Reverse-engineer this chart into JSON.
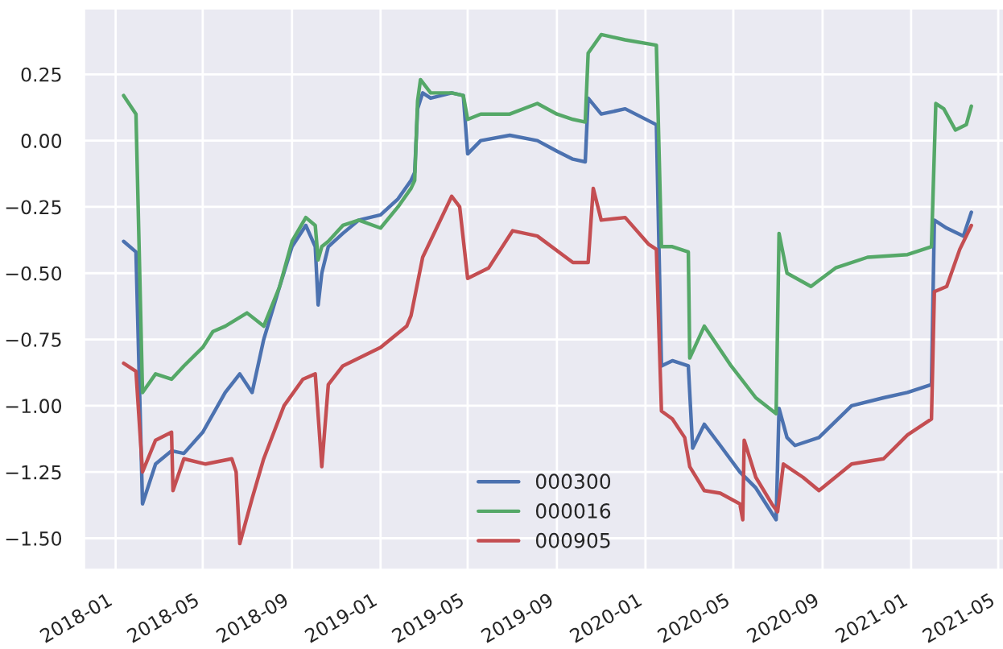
{
  "chart_data": {
    "type": "line",
    "xlim": [
      "2017-11-18",
      "2021-05-12"
    ],
    "xticks": [
      {
        "value": "2018-01-01",
        "label": "2018-01"
      },
      {
        "value": "2018-05-01",
        "label": "2018-05"
      },
      {
        "value": "2018-09-01",
        "label": "2018-09"
      },
      {
        "value": "2019-01-01",
        "label": "2019-01"
      },
      {
        "value": "2019-05-01",
        "label": "2019-05"
      },
      {
        "value": "2019-09-01",
        "label": "2019-09"
      },
      {
        "value": "2020-01-01",
        "label": "2020-01"
      },
      {
        "value": "2020-05-01",
        "label": "2020-05"
      },
      {
        "value": "2020-09-01",
        "label": "2020-09"
      },
      {
        "value": "2021-01-01",
        "label": "2021-01"
      },
      {
        "value": "2021-05-01",
        "label": "2021-05"
      }
    ],
    "ylim": [
      -1.62,
      0.5
    ],
    "yticks": [
      {
        "value": -1.5,
        "label": "−1.50"
      },
      {
        "value": -1.25,
        "label": "−1.25"
      },
      {
        "value": -1.0,
        "label": "−1.00"
      },
      {
        "value": -0.75,
        "label": "−0.75"
      },
      {
        "value": -0.5,
        "label": "−0.50"
      },
      {
        "value": -0.25,
        "label": "−0.25"
      },
      {
        "value": 0.0,
        "label": "0.00"
      },
      {
        "value": 0.25,
        "label": "0.25"
      }
    ],
    "grid": true,
    "legend": "bottom",
    "series": [
      {
        "name": "000300",
        "color": "#4c72b0",
        "x": [
          "2018-01-12",
          "2018-01-29",
          "2018-02-07",
          "2018-02-25",
          "2018-03-19",
          "2018-04-05",
          "2018-05-01",
          "2018-06-01",
          "2018-06-21",
          "2018-07-08",
          "2018-07-24",
          "2018-08-15",
          "2018-09-01",
          "2018-09-20",
          "2018-10-03",
          "2018-10-07",
          "2018-10-12",
          "2018-10-21",
          "2018-11-10",
          "2018-12-02",
          "2019-01-01",
          "2019-01-25",
          "2019-02-12",
          "2019-02-17",
          "2019-02-21",
          "2019-02-28",
          "2019-03-11",
          "2019-04-09",
          "2019-04-25",
          "2019-05-01",
          "2019-05-19",
          "2019-06-28",
          "2019-08-05",
          "2019-09-01",
          "2019-09-23",
          "2019-10-10",
          "2019-10-14",
          "2019-11-01",
          "2019-12-04",
          "2020-01-16",
          "2020-01-23",
          "2020-02-07",
          "2020-02-29",
          "2020-03-06",
          "2020-03-22",
          "2020-04-13",
          "2020-05-10",
          "2020-06-01",
          "2020-06-29",
          "2020-07-03",
          "2020-07-14",
          "2020-07-25",
          "2020-08-27",
          "2020-10-11",
          "2020-11-24",
          "2020-12-27",
          "2021-01-29",
          "2021-02-02",
          "2021-02-19",
          "2021-03-14",
          "2021-03-25"
        ],
        "values": [
          -0.38,
          -0.42,
          -1.37,
          -1.22,
          -1.17,
          -1.18,
          -1.1,
          -0.95,
          -0.88,
          -0.95,
          -0.75,
          -0.55,
          -0.4,
          -0.32,
          -0.4,
          -0.62,
          -0.5,
          -0.4,
          -0.35,
          -0.3,
          -0.28,
          -0.22,
          -0.15,
          -0.12,
          0.12,
          0.18,
          0.16,
          0.18,
          0.17,
          -0.05,
          0.0,
          0.02,
          0.0,
          -0.04,
          -0.07,
          -0.08,
          0.16,
          0.1,
          0.12,
          0.06,
          -0.85,
          -0.83,
          -0.85,
          -1.16,
          -1.07,
          -1.15,
          -1.25,
          -1.31,
          -1.43,
          -1.01,
          -1.12,
          -1.15,
          -1.12,
          -1.0,
          -0.97,
          -0.95,
          -0.92,
          -0.3,
          -0.33,
          -0.36,
          -0.27
        ]
      },
      {
        "name": "000016",
        "color": "#55a868",
        "x": [
          "2018-01-12",
          "2018-01-29",
          "2018-02-07",
          "2018-02-25",
          "2018-03-19",
          "2018-04-05",
          "2018-05-01",
          "2018-05-15",
          "2018-06-01",
          "2018-07-01",
          "2018-07-24",
          "2018-08-15",
          "2018-09-01",
          "2018-09-20",
          "2018-10-03",
          "2018-10-07",
          "2018-10-12",
          "2018-10-21",
          "2018-11-10",
          "2018-12-02",
          "2019-01-01",
          "2019-01-25",
          "2019-02-12",
          "2019-02-17",
          "2019-02-21",
          "2019-02-25",
          "2019-03-11",
          "2019-04-09",
          "2019-04-25",
          "2019-05-01",
          "2019-05-19",
          "2019-06-28",
          "2019-08-05",
          "2019-09-01",
          "2019-09-23",
          "2019-10-10",
          "2019-10-14",
          "2019-11-01",
          "2019-12-04",
          "2020-01-16",
          "2020-01-23",
          "2020-02-07",
          "2020-02-29",
          "2020-03-02",
          "2020-03-22",
          "2020-04-28",
          "2020-06-01",
          "2020-06-29",
          "2020-07-03",
          "2020-07-14",
          "2020-08-16",
          "2020-09-19",
          "2020-11-02",
          "2020-12-27",
          "2021-01-29",
          "2021-02-04",
          "2021-02-15",
          "2021-03-03",
          "2021-03-18",
          "2021-03-25"
        ],
        "values": [
          0.17,
          0.1,
          -0.95,
          -0.88,
          -0.9,
          -0.85,
          -0.78,
          -0.72,
          -0.7,
          -0.65,
          -0.7,
          -0.55,
          -0.38,
          -0.29,
          -0.32,
          -0.45,
          -0.4,
          -0.38,
          -0.32,
          -0.3,
          -0.33,
          -0.25,
          -0.18,
          -0.15,
          0.15,
          0.23,
          0.18,
          0.18,
          0.17,
          0.08,
          0.1,
          0.1,
          0.14,
          0.1,
          0.08,
          0.07,
          0.33,
          0.4,
          0.38,
          0.36,
          -0.4,
          -0.4,
          -0.42,
          -0.82,
          -0.7,
          -0.85,
          -0.97,
          -1.03,
          -0.35,
          -0.5,
          -0.55,
          -0.48,
          -0.44,
          -0.43,
          -0.4,
          0.14,
          0.12,
          0.04,
          0.06,
          0.13
        ]
      },
      {
        "name": "000905",
        "color": "#c44e52",
        "x": [
          "2018-01-12",
          "2018-01-29",
          "2018-02-07",
          "2018-02-25",
          "2018-03-19",
          "2018-03-21",
          "2018-04-05",
          "2018-05-05",
          "2018-06-10",
          "2018-06-16",
          "2018-06-21",
          "2018-07-08",
          "2018-07-24",
          "2018-08-21",
          "2018-09-16",
          "2018-10-03",
          "2018-10-12",
          "2018-10-21",
          "2018-11-10",
          "2019-01-01",
          "2019-02-06",
          "2019-02-12",
          "2019-02-28",
          "2019-04-09",
          "2019-04-20",
          "2019-05-01",
          "2019-05-30",
          "2019-07-02",
          "2019-08-05",
          "2019-09-23",
          "2019-10-14",
          "2019-10-21",
          "2019-11-01",
          "2019-12-04",
          "2020-01-05",
          "2020-01-16",
          "2020-01-23",
          "2020-02-07",
          "2020-02-24",
          "2020-03-02",
          "2020-03-22",
          "2020-04-13",
          "2020-05-10",
          "2020-05-14",
          "2020-05-16",
          "2020-06-01",
          "2020-06-23",
          "2020-07-01",
          "2020-07-09",
          "2020-08-05",
          "2020-08-27",
          "2020-10-11",
          "2020-11-24",
          "2020-12-27",
          "2021-01-29",
          "2021-02-02",
          "2021-02-19",
          "2021-03-09",
          "2021-03-25"
        ],
        "values": [
          -0.84,
          -0.87,
          -1.25,
          -1.13,
          -1.1,
          -1.32,
          -1.2,
          -1.22,
          -1.2,
          -1.25,
          -1.52,
          -1.35,
          -1.2,
          -1.0,
          -0.9,
          -0.88,
          -1.23,
          -0.92,
          -0.85,
          -0.78,
          -0.7,
          -0.66,
          -0.44,
          -0.21,
          -0.25,
          -0.52,
          -0.48,
          -0.34,
          -0.36,
          -0.46,
          -0.46,
          -0.18,
          -0.3,
          -0.29,
          -0.39,
          -0.41,
          -1.02,
          -1.05,
          -1.12,
          -1.23,
          -1.32,
          -1.33,
          -1.37,
          -1.43,
          -1.13,
          -1.27,
          -1.37,
          -1.4,
          -1.22,
          -1.27,
          -1.32,
          -1.22,
          -1.2,
          -1.11,
          -1.05,
          -0.57,
          -0.55,
          -0.41,
          -0.32
        ]
      }
    ]
  }
}
